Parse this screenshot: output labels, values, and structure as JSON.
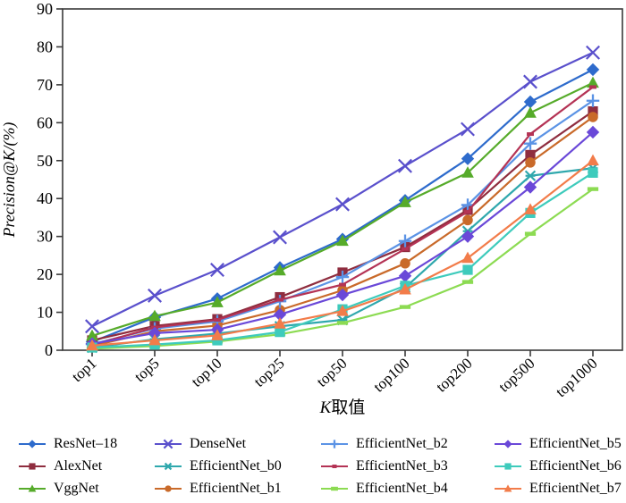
{
  "figure": {
    "y_axis_label": "Precision@K/(%)",
    "x_axis_label": "K取值",
    "x_axis_label_italic_prefix": "K",
    "x_axis_label_rest": "取值"
  },
  "chart_data": {
    "type": "line",
    "title": "",
    "xlabel": "K取值",
    "ylabel": "Precision@K/(%)",
    "ylim": [
      0,
      90
    ],
    "y_ticks": [
      0,
      10,
      20,
      30,
      40,
      50,
      60,
      70,
      80,
      90
    ],
    "grid": false,
    "legend_position": "bottom",
    "categories": [
      "top1",
      "top5",
      "top10",
      "top25",
      "top50",
      "top100",
      "top200",
      "top500",
      "top1000"
    ],
    "series": [
      {
        "name": "ResNet–18",
        "color": "#2e6bcc",
        "marker": "diamond",
        "values": [
          2.2,
          8.7,
          13.6,
          21.8,
          29.3,
          39.5,
          50.5,
          65.5,
          74.0
        ]
      },
      {
        "name": "AlexNet",
        "color": "#8f2d3f",
        "marker": "square",
        "values": [
          2.6,
          6.4,
          8.2,
          14.0,
          20.5,
          27.2,
          37.0,
          51.5,
          63.0
        ]
      },
      {
        "name": "VggNet",
        "color": "#56ab2a",
        "marker": "triangle",
        "values": [
          3.8,
          9.0,
          12.6,
          21.0,
          28.8,
          39.0,
          46.8,
          62.6,
          70.5
        ]
      },
      {
        "name": "DenseNet",
        "color": "#5a50cc",
        "marker": "x",
        "values": [
          6.3,
          14.4,
          21.2,
          29.8,
          38.5,
          48.6,
          58.3,
          70.8,
          78.5
        ]
      },
      {
        "name": "EfficientNet_b0",
        "color": "#2fa8ad",
        "marker": "asterisk",
        "values": [
          0.7,
          2.9,
          4.4,
          6.3,
          8.0,
          16.5,
          31.4,
          46.0,
          48.0
        ]
      },
      {
        "name": "EfficientNet_b1",
        "color": "#c96a2a",
        "marker": "circle",
        "values": [
          1.1,
          5.0,
          6.5,
          10.6,
          15.8,
          22.9,
          34.3,
          49.5,
          61.5
        ]
      },
      {
        "name": "EfficientNet_b2",
        "color": "#5b93e5",
        "marker": "plus",
        "values": [
          1.6,
          5.7,
          7.6,
          12.9,
          19.3,
          28.8,
          38.3,
          54.5,
          65.8
        ]
      },
      {
        "name": "EfficientNet_b3",
        "color": "#b43355",
        "marker": "tick",
        "values": [
          1.4,
          6.0,
          8.0,
          13.3,
          17.3,
          26.7,
          36.5,
          57.0,
          69.4
        ]
      },
      {
        "name": "EfficientNet_b4",
        "color": "#8cdb52",
        "marker": "dash",
        "values": [
          0.4,
          1.1,
          2.3,
          4.2,
          7.2,
          11.4,
          18.0,
          30.7,
          42.5
        ]
      },
      {
        "name": "EfficientNet_b5",
        "color": "#6a48d8",
        "marker": "diamond",
        "values": [
          1.7,
          4.5,
          5.4,
          9.4,
          14.6,
          19.6,
          30.0,
          43.0,
          57.5
        ]
      },
      {
        "name": "EfficientNet_b6",
        "color": "#3ecbbc",
        "marker": "square",
        "values": [
          0.7,
          1.5,
          2.6,
          4.8,
          10.8,
          17.0,
          21.2,
          36.2,
          46.8
        ]
      },
      {
        "name": "EfficientNet_b7",
        "color": "#f27c4a",
        "marker": "triangle",
        "values": [
          1.2,
          2.6,
          3.9,
          7.0,
          10.3,
          16.0,
          24.3,
          37.1,
          50.0
        ]
      }
    ],
    "legend_column_order": [
      [
        "ResNet–18",
        "AlexNet",
        "VggNet"
      ],
      [
        "DenseNet",
        "EfficientNet_b0",
        "EfficientNet_b1"
      ],
      [
        "EfficientNet_b2",
        "EfficientNet_b3",
        "EfficientNet_b4"
      ],
      [
        "EfficientNet_b5",
        "EfficientNet_b6",
        "EfficientNet_b7"
      ]
    ]
  }
}
